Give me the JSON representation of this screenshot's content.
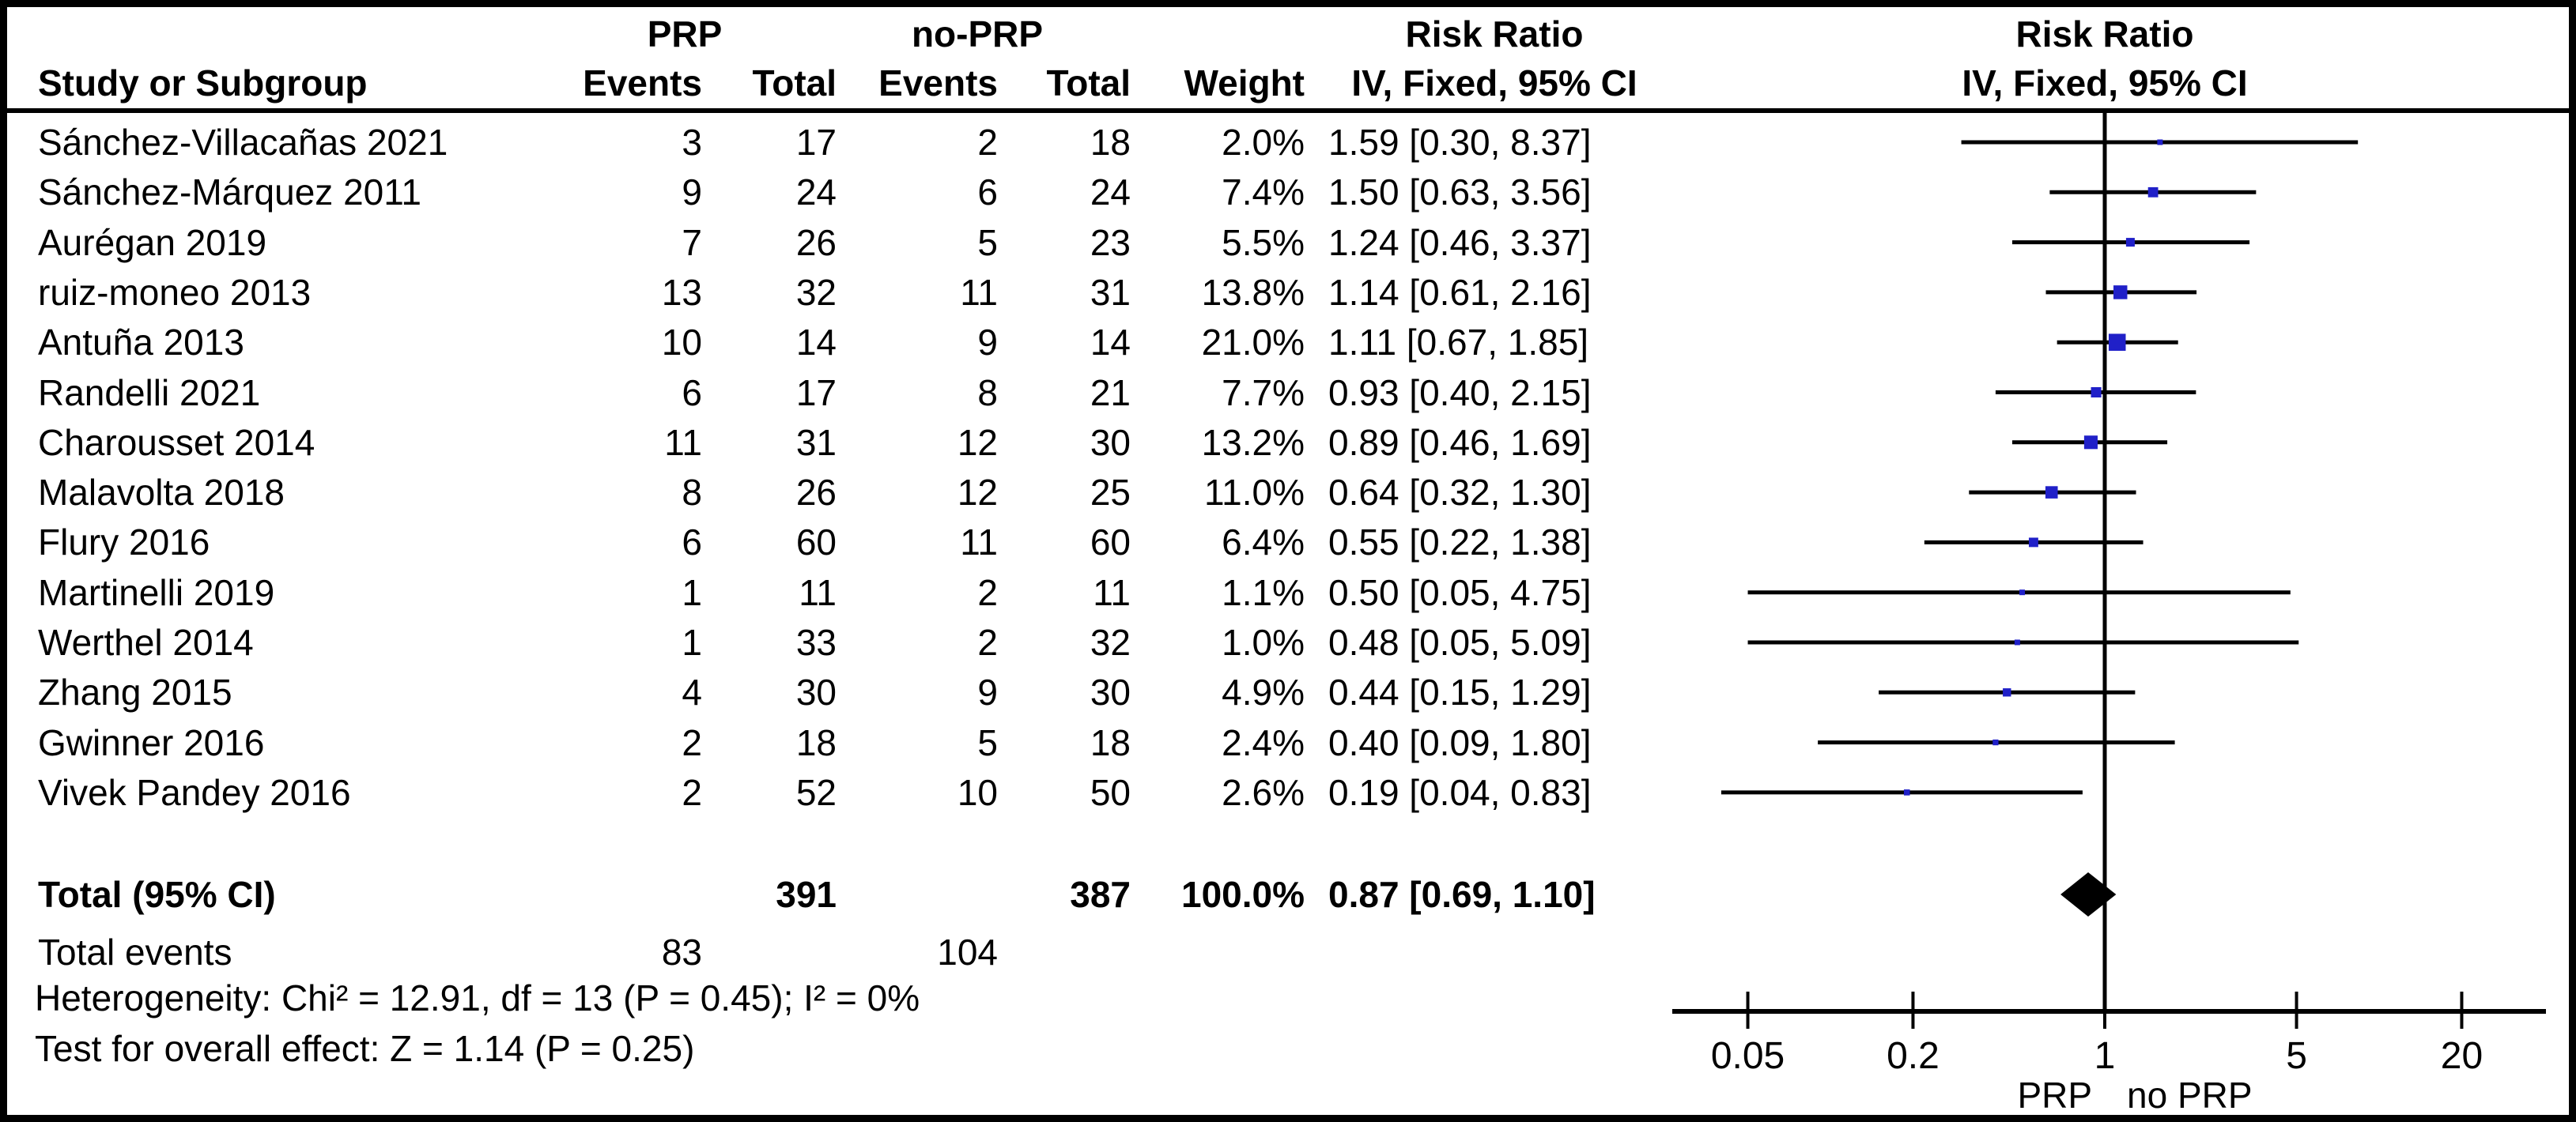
{
  "header": {
    "study_col": "Study or Subgroup",
    "group1": "PRP",
    "group2": "no-PRP",
    "events": "Events",
    "total": "Total",
    "weight": "Weight",
    "effect": "Risk Ratio",
    "method": "IV, Fixed, 95% CI"
  },
  "chart_data": {
    "type": "forest",
    "effect_measure": "Risk Ratio",
    "model": "IV, Fixed, 95% CI",
    "x_scale": "log",
    "x_ticks": [
      "0.05",
      "0.2",
      "1",
      "5",
      "20"
    ],
    "x_tick_values": [
      0.05,
      0.2,
      1,
      5,
      20
    ],
    "xlabel_left": "PRP",
    "xlabel_right": "no PRP",
    "marker_color": "#2020c8",
    "line_color": "#000000",
    "studies": [
      {
        "name": "Sánchez-Villacañas 2021",
        "prp_events": "3",
        "prp_total": "17",
        "noprp_events": "2",
        "noprp_total": "18",
        "weight": "2.0%",
        "weight_pct": 2.0,
        "rr": 1.59,
        "ci_low": 0.3,
        "ci_high": 8.37,
        "ci_label": "1.59 [0.30, 8.37]"
      },
      {
        "name": "Sánchez-Márquez 2011",
        "prp_events": "9",
        "prp_total": "24",
        "noprp_events": "6",
        "noprp_total": "24",
        "weight": "7.4%",
        "weight_pct": 7.4,
        "rr": 1.5,
        "ci_low": 0.63,
        "ci_high": 3.56,
        "ci_label": "1.50 [0.63, 3.56]"
      },
      {
        "name": "Aurégan 2019",
        "prp_events": "7",
        "prp_total": "26",
        "noprp_events": "5",
        "noprp_total": "23",
        "weight": "5.5%",
        "weight_pct": 5.5,
        "rr": 1.24,
        "ci_low": 0.46,
        "ci_high": 3.37,
        "ci_label": "1.24 [0.46, 3.37]"
      },
      {
        "name": "ruiz-moneo 2013",
        "prp_events": "13",
        "prp_total": "32",
        "noprp_events": "11",
        "noprp_total": "31",
        "weight": "13.8%",
        "weight_pct": 13.8,
        "rr": 1.14,
        "ci_low": 0.61,
        "ci_high": 2.16,
        "ci_label": "1.14 [0.61, 2.16]"
      },
      {
        "name": "Antuña 2013",
        "prp_events": "10",
        "prp_total": "14",
        "noprp_events": "9",
        "noprp_total": "14",
        "weight": "21.0%",
        "weight_pct": 21.0,
        "rr": 1.11,
        "ci_low": 0.67,
        "ci_high": 1.85,
        "ci_label": "1.11 [0.67, 1.85]"
      },
      {
        "name": "Randelli 2021",
        "prp_events": "6",
        "prp_total": "17",
        "noprp_events": "8",
        "noprp_total": "21",
        "weight": "7.7%",
        "weight_pct": 7.7,
        "rr": 0.93,
        "ci_low": 0.4,
        "ci_high": 2.15,
        "ci_label": "0.93 [0.40, 2.15]"
      },
      {
        "name": "Charousset 2014",
        "prp_events": "11",
        "prp_total": "31",
        "noprp_events": "12",
        "noprp_total": "30",
        "weight": "13.2%",
        "weight_pct": 13.2,
        "rr": 0.89,
        "ci_low": 0.46,
        "ci_high": 1.69,
        "ci_label": "0.89 [0.46, 1.69]"
      },
      {
        "name": "Malavolta 2018",
        "prp_events": "8",
        "prp_total": "26",
        "noprp_events": "12",
        "noprp_total": "25",
        "weight": "11.0%",
        "weight_pct": 11.0,
        "rr": 0.64,
        "ci_low": 0.32,
        "ci_high": 1.3,
        "ci_label": "0.64 [0.32, 1.30]"
      },
      {
        "name": "Flury 2016",
        "prp_events": "6",
        "prp_total": "60",
        "noprp_events": "11",
        "noprp_total": "60",
        "weight": "6.4%",
        "weight_pct": 6.4,
        "rr": 0.55,
        "ci_low": 0.22,
        "ci_high": 1.38,
        "ci_label": "0.55 [0.22, 1.38]"
      },
      {
        "name": "Martinelli 2019",
        "prp_events": "1",
        "prp_total": "11",
        "noprp_events": "2",
        "noprp_total": "11",
        "weight": "1.1%",
        "weight_pct": 1.1,
        "rr": 0.5,
        "ci_low": 0.05,
        "ci_high": 4.75,
        "ci_label": "0.50 [0.05, 4.75]"
      },
      {
        "name": "Werthel 2014",
        "prp_events": "1",
        "prp_total": "33",
        "noprp_events": "2",
        "noprp_total": "32",
        "weight": "1.0%",
        "weight_pct": 1.0,
        "rr": 0.48,
        "ci_low": 0.05,
        "ci_high": 5.09,
        "ci_label": "0.48 [0.05, 5.09]"
      },
      {
        "name": "Zhang 2015",
        "prp_events": "4",
        "prp_total": "30",
        "noprp_events": "9",
        "noprp_total": "30",
        "weight": "4.9%",
        "weight_pct": 4.9,
        "rr": 0.44,
        "ci_low": 0.15,
        "ci_high": 1.29,
        "ci_label": "0.44 [0.15, 1.29]"
      },
      {
        "name": "Gwinner 2016",
        "prp_events": "2",
        "prp_total": "18",
        "noprp_events": "5",
        "noprp_total": "18",
        "weight": "2.4%",
        "weight_pct": 2.4,
        "rr": 0.4,
        "ci_low": 0.09,
        "ci_high": 1.8,
        "ci_label": "0.40 [0.09, 1.80]"
      },
      {
        "name": "Vivek Pandey 2016",
        "prp_events": "2",
        "prp_total": "52",
        "noprp_events": "10",
        "noprp_total": "50",
        "weight": "2.6%",
        "weight_pct": 2.6,
        "rr": 0.19,
        "ci_low": 0.04,
        "ci_high": 0.83,
        "ci_label": "0.19 [0.04, 0.83]"
      }
    ],
    "total": {
      "label": "Total (95% CI)",
      "prp_total": "391",
      "noprp_total": "387",
      "weight": "100.0%",
      "rr": 0.87,
      "ci_low": 0.69,
      "ci_high": 1.1,
      "ci_label": "0.87 [0.69, 1.10]"
    },
    "total_events": {
      "label": "Total events",
      "prp_events": "83",
      "noprp_events": "104"
    },
    "heterogeneity": "Heterogeneity: Chi² = 12.91, df = 13 (P = 0.45); I² = 0%",
    "overall_effect": "Test for overall effect: Z = 1.14 (P = 0.25)"
  }
}
